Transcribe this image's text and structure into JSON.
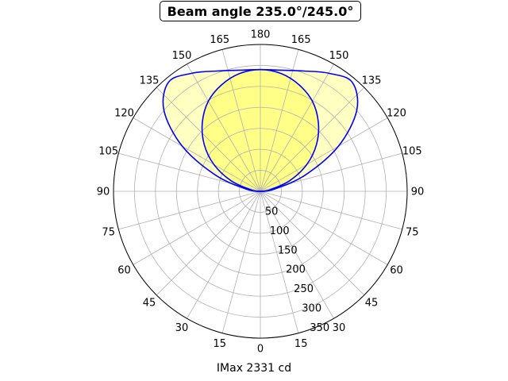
{
  "chart_data": {
    "type": "polar-line",
    "title": "Beam angle 235.0°/245.0°",
    "xlabel": "IMax 2331 cd",
    "angle_ticks": [
      "0",
      "15",
      "30",
      "45",
      "60",
      "75",
      "90",
      "105",
      "120",
      "135",
      "150",
      "165",
      "180",
      "165",
      "150",
      "135",
      "120",
      "105",
      "90",
      "75",
      "60",
      "45",
      "30",
      "15"
    ],
    "radial_ticks": [
      "50",
      "100",
      "150",
      "200",
      "250",
      "300",
      "350"
    ],
    "rlim": [
      0,
      350
    ],
    "grid": true,
    "angle_zero": "bottom",
    "series": [
      {
        "curve": "outer",
        "color": "#0000ff",
        "fill": "#ffffc2",
        "angles_deg": [
          180,
          170,
          160,
          150,
          140,
          130,
          120,
          110,
          100,
          90
        ],
        "values": [
          290,
          293,
          305,
          325,
          340,
          300,
          215,
          115,
          38,
          0
        ]
      },
      {
        "curve": "inner",
        "color": "#0000ff",
        "fill": "#ffff88",
        "angles_deg": [
          180,
          170,
          160,
          150,
          140,
          130,
          120,
          110,
          100,
          90
        ],
        "values": [
          290,
          285,
          270,
          248,
          215,
          175,
          128,
          75,
          25,
          0
        ]
      }
    ]
  }
}
